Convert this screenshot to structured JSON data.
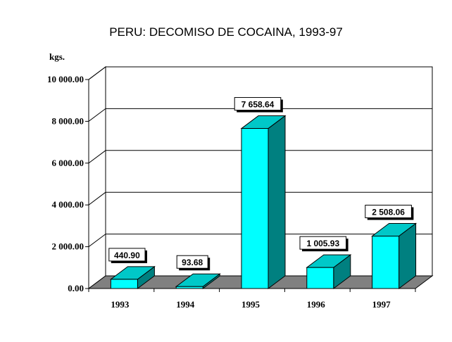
{
  "chart_data": {
    "type": "bar",
    "title": "PERU: DECOMISO DE COCAINA, 1993-97",
    "ylabel": "kgs.",
    "xlabel": "",
    "categories": [
      "1993",
      "1994",
      "1995",
      "1996",
      "1997"
    ],
    "values": [
      440.9,
      93.68,
      7658.64,
      1005.93,
      2508.06
    ],
    "data_labels": [
      "440.90",
      "93.68",
      "7 658.64",
      "1 005.93",
      "2 508.06"
    ],
    "ylim": [
      0,
      10000
    ],
    "yticks": [
      0,
      2000,
      4000,
      6000,
      8000,
      10000
    ],
    "ytick_labels": [
      "0.00",
      "2 000.00",
      "4 000.00",
      "6 000.00",
      "8 000.00",
      "10 000.00"
    ],
    "grid": true,
    "legend": "none",
    "colors": {
      "bar_front": "#00ffff",
      "bar_side": "#008080",
      "bar_top": "#00c8c8",
      "floor": "#808080",
      "grid": "#000000"
    }
  }
}
